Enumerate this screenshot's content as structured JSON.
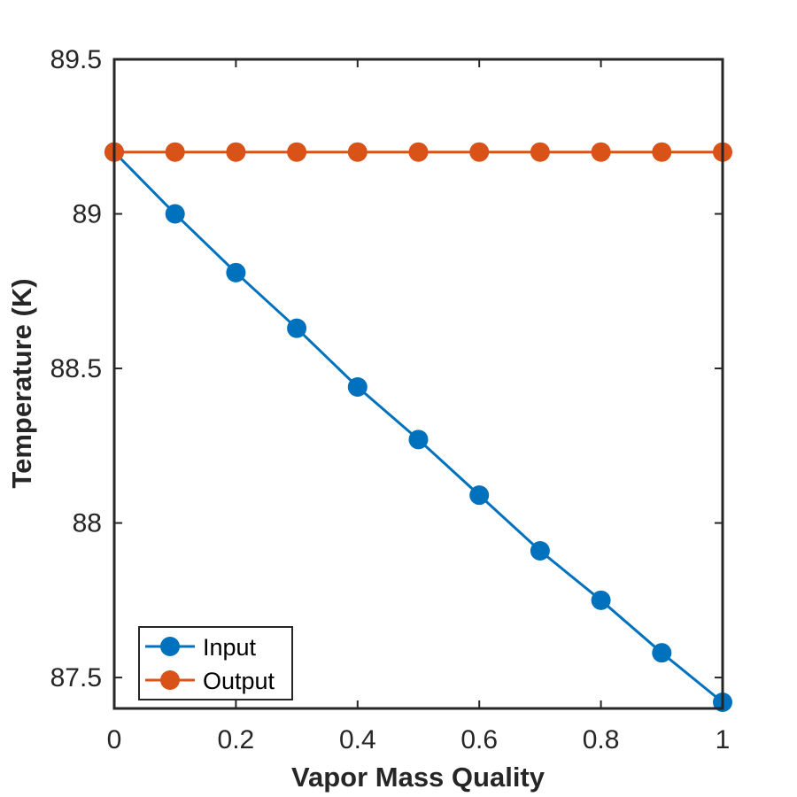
{
  "chart_data": {
    "type": "line",
    "xlabel": "Vapor Mass Quality",
    "ylabel": "Temperature (K)",
    "xlim": [
      0,
      1
    ],
    "ylim": [
      87.4,
      89.5
    ],
    "xticks": [
      0,
      0.2,
      0.4,
      0.6,
      0.8,
      1
    ],
    "xtick_labels": [
      "0",
      "0.2",
      "0.4",
      "0.6",
      "0.8",
      "1"
    ],
    "yticks": [
      87.5,
      88,
      88.5,
      89,
      89.5
    ],
    "ytick_labels": [
      "87.5",
      "88",
      "88.5",
      "89",
      "89.5"
    ],
    "grid": false,
    "legend_position": "bottom-left",
    "x": [
      0,
      0.1,
      0.2,
      0.3,
      0.4,
      0.5,
      0.6,
      0.7,
      0.8,
      0.9,
      1.0
    ],
    "series": [
      {
        "name": "Input",
        "color": "#0072BD",
        "marker": "circle",
        "values": [
          89.2,
          89.0,
          88.81,
          88.63,
          88.44,
          88.27,
          88.09,
          87.91,
          87.75,
          87.58,
          87.42
        ]
      },
      {
        "name": "Output",
        "color": "#D95319",
        "marker": "circle",
        "values": [
          89.2,
          89.2,
          89.2,
          89.2,
          89.2,
          89.2,
          89.2,
          89.2,
          89.2,
          89.2,
          89.2
        ]
      }
    ]
  }
}
